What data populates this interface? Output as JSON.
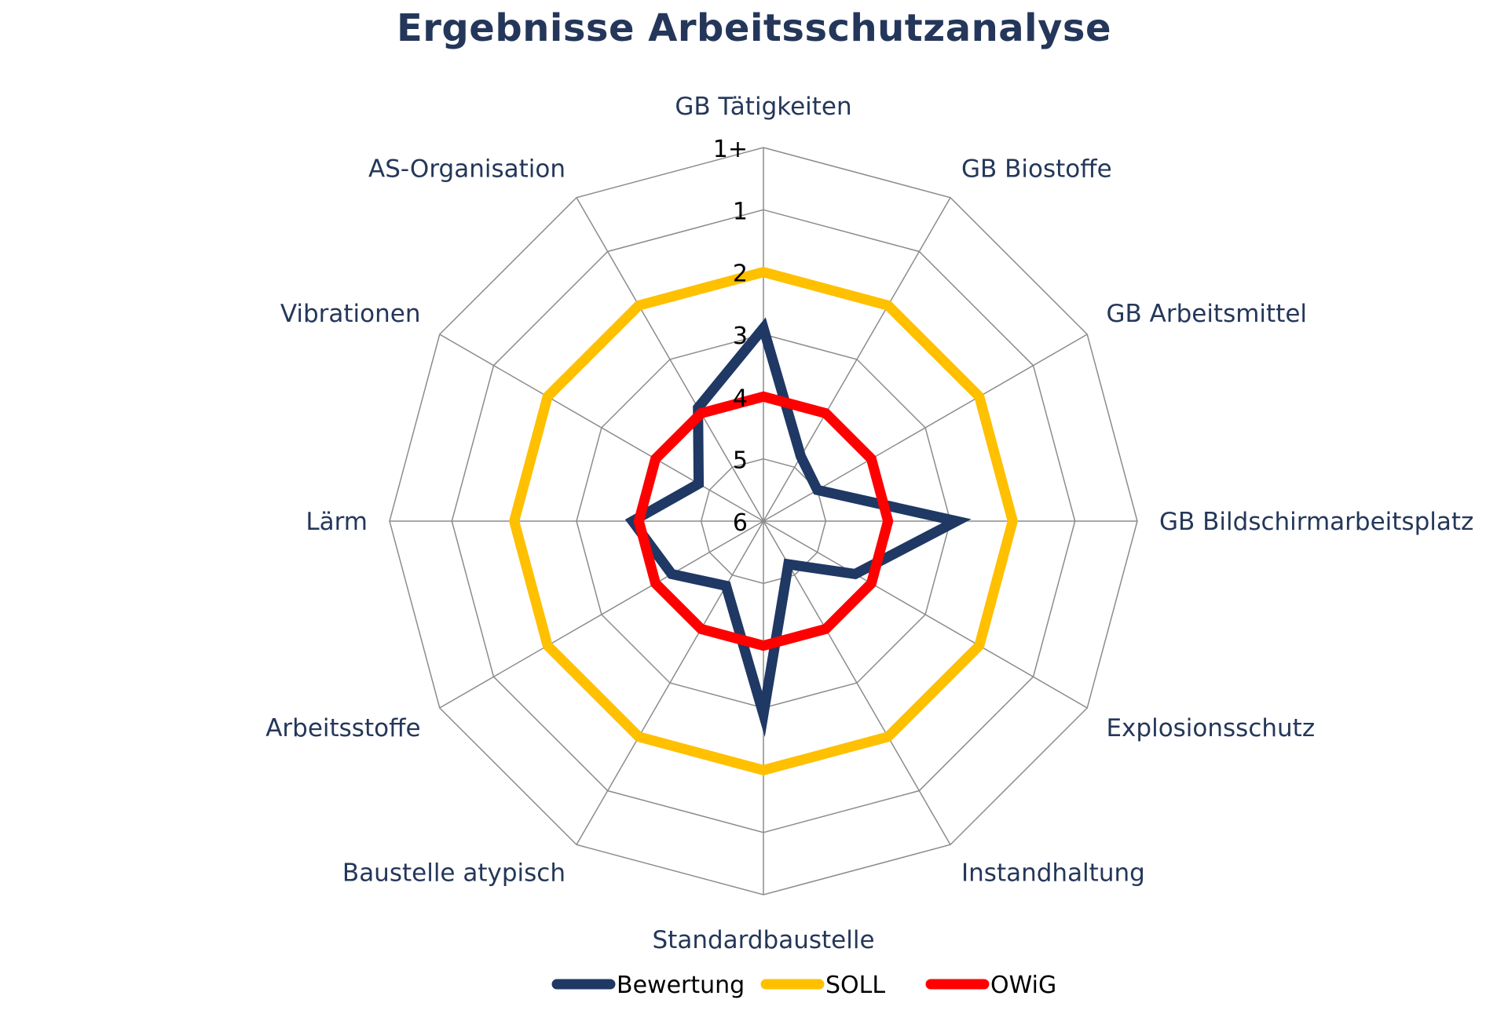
{
  "chart_data": {
    "type": "radar",
    "title": "Ergebnisse Arbeitsschutzanalyse",
    "categories": [
      "GB Tätigkeiten",
      "GB Biostoffe",
      "GB Arbeitsmittel",
      "GB Bildschirmarbeitsplatz",
      "Explosionsschutz",
      "Instandhaltung",
      "Standardbaustelle",
      "Baustelle atypisch",
      "Arbeitsstoffe",
      "Lärm",
      "Vibrationen",
      "AS-Organisation"
    ],
    "scale_labels": [
      "6",
      "5",
      "4",
      "3",
      "2",
      "1",
      "1+"
    ],
    "scale_range": [
      0,
      6
    ],
    "grid": true,
    "legend_position": "bottom",
    "series": [
      {
        "name": "Bewertung",
        "color": "#1f3864",
        "values": [
          3.1,
          1.2,
          1.0,
          3.1,
          1.7,
          0.8,
          3.1,
          1.2,
          1.7,
          2.1,
          1.2,
          2.1
        ]
      },
      {
        "name": "SOLL",
        "color": "#ffc000",
        "values": [
          4.0,
          4.0,
          4.0,
          4.0,
          4.0,
          4.0,
          4.0,
          4.0,
          4.0,
          4.0,
          4.0,
          4.0
        ]
      },
      {
        "name": "OWiG",
        "color": "#ff0000",
        "values": [
          2.0,
          2.0,
          2.0,
          2.0,
          2.0,
          2.0,
          2.0,
          2.0,
          2.0,
          2.0,
          2.0,
          2.0
        ]
      }
    ]
  }
}
